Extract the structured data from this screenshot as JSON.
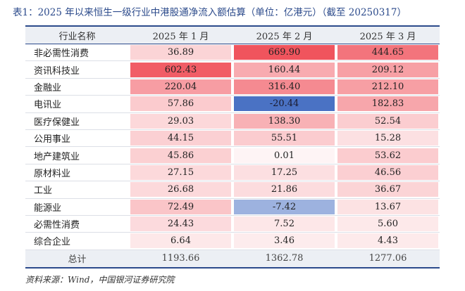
{
  "title": "表1：2025 年以来恒生一级行业中港股通净流入额估算（单位：亿港元）（截至 20250317）",
  "headers": [
    "行业名称",
    "2025 年 1 月",
    "2025 年 2 月",
    "2025 年 3 月"
  ],
  "rows": [
    {
      "name": "非必需性消费",
      "values": [
        "36.89",
        "669.90",
        "444.65"
      ]
    },
    {
      "name": "资讯科技业",
      "values": [
        "602.43",
        "160.44",
        "209.12"
      ]
    },
    {
      "name": "金融业",
      "values": [
        "220.04",
        "316.40",
        "212.10"
      ]
    },
    {
      "name": "电讯业",
      "values": [
        "57.86",
        "-20.44",
        "182.83"
      ]
    },
    {
      "name": "医疗保健业",
      "values": [
        "29.03",
        "138.30",
        "52.54"
      ]
    },
    {
      "name": "公用事业",
      "values": [
        "44.15",
        "55.51",
        "15.28"
      ]
    },
    {
      "name": "地产建筑业",
      "values": [
        "45.86",
        "0.01",
        "53.62"
      ]
    },
    {
      "name": "原材料业",
      "values": [
        "27.15",
        "17.25",
        "46.56"
      ]
    },
    {
      "name": "工业",
      "values": [
        "26.68",
        "21.86",
        "36.67"
      ]
    },
    {
      "name": "能源业",
      "values": [
        "72.49",
        "-7.42",
        "13.67"
      ]
    },
    {
      "name": "必需性消费",
      "values": [
        "24.43",
        "7.52",
        "5.60"
      ]
    },
    {
      "name": "综合企业",
      "values": [
        "6.64",
        "3.46",
        "4.43"
      ]
    }
  ],
  "total": {
    "label": "总计",
    "values": [
      "1193.66",
      "1362.78",
      "1277.06"
    ]
  },
  "source": "资料来源：Wind，中国银河证券研究院",
  "colors": {
    "positive": "#f0505a",
    "negative": "#4a72c4",
    "header_bg": "#eceff4",
    "accent": "#2b4a8b"
  }
}
